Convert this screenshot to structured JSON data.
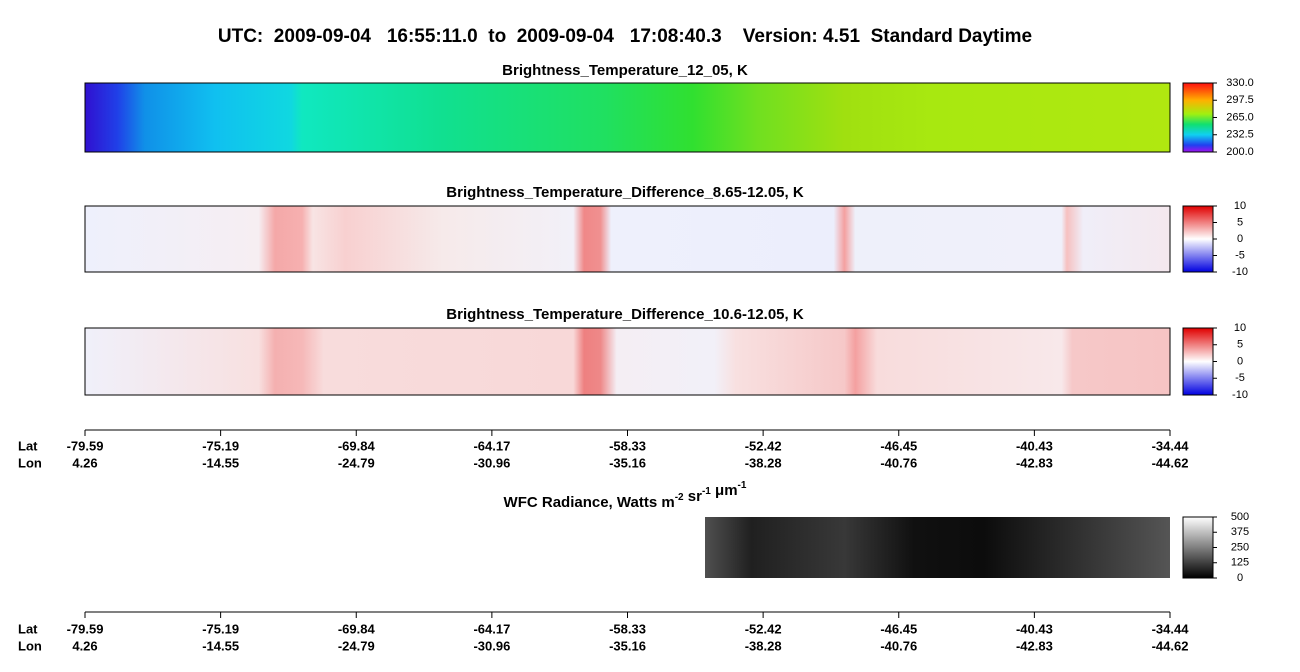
{
  "title": "UTC:  2009-09-04   16:55:11.0  to  2009-09-04   17:08:40.3    Version: 4.51  Standard Daytime",
  "panels": [
    {
      "title": "Brightness_Temperature_12_05, K",
      "colorbar_ticks": [
        {
          "value": 330,
          "label": "330.0"
        },
        {
          "value": 297.5,
          "label": "297.5"
        },
        {
          "value": 265,
          "label": "265.0"
        },
        {
          "value": 232.5,
          "label": "232.5"
        },
        {
          "value": 200,
          "label": "200.0"
        }
      ]
    },
    {
      "title": "Brightness_Temperature_Difference_8.65-12.05, K",
      "colorbar_ticks": [
        10,
        5,
        0,
        -5,
        -10
      ]
    },
    {
      "title": "Brightness_Temperature_Difference_10.6-12.05, K",
      "colorbar_ticks": [
        10,
        5,
        0,
        -5,
        -10
      ]
    },
    {
      "title_parts": [
        {
          "text": "WFC Radiance, Watts m",
          "sup": "-2"
        },
        {
          "text": " sr",
          "sup": "-1"
        },
        {
          "text": " μm",
          "sup": "-1"
        }
      ],
      "colorbar_ticks": [
        500,
        375,
        250,
        125,
        0
      ]
    }
  ],
  "axis": {
    "lat_label": "Lat",
    "lon_label": "Lon",
    "lat": [
      -79.59,
      -75.19,
      -69.84,
      -64.17,
      -58.33,
      -52.42,
      -46.45,
      -40.43,
      -34.44
    ],
    "lon": [
      4.26,
      -14.55,
      -24.79,
      -30.96,
      -35.16,
      -38.28,
      -40.76,
      -42.83,
      -44.62
    ]
  }
}
